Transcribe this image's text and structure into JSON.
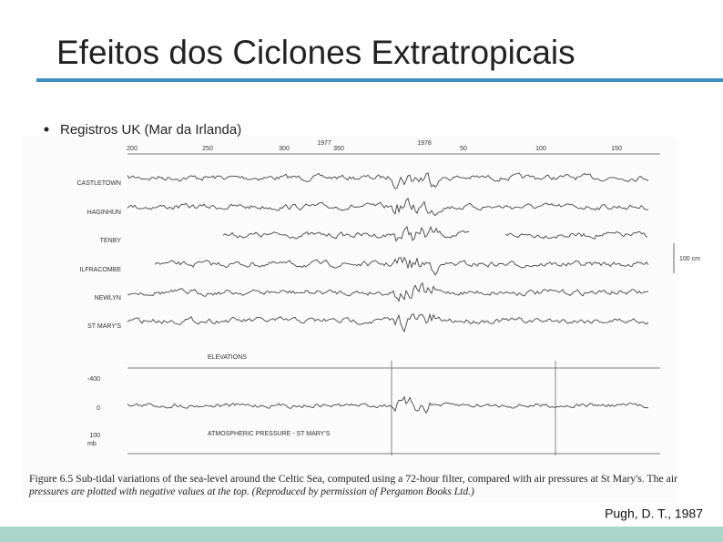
{
  "title": "Efeitos dos Ciclones Extratropicais",
  "bullet": "Registros UK (Mar da Irlanda)",
  "figure": {
    "top_axis": [
      "200",
      "250",
      "300",
      "1977",
      "350",
      "1978",
      "50",
      "100",
      "150"
    ],
    "stations": [
      "CASTLETOWN",
      "HAGINHUN",
      "TENBY",
      "ILFRACOMBE",
      "NEWLYN",
      "ST MARY'S"
    ],
    "scale_label": "100 cm",
    "elevations_label": "ELEVATIONS",
    "pressure_axis": [
      "-400",
      "0",
      "100"
    ],
    "pressure_unit": "mb",
    "pressure_label": "ATMOSPHERIC PRESSURE - ST MARY'S",
    "caption": [
      "Figure 6.5  Sub-tidal variations of the sea-level around the Celtic Sea, computed using a 72-hour filter, compared with air pressures at St Mary's. The air",
      "pressures are plotted with negative values at the top. (Reproduced by permission of Pergamon Books Ltd.)"
    ]
  },
  "citation": "Pugh, D. T., 1987"
}
